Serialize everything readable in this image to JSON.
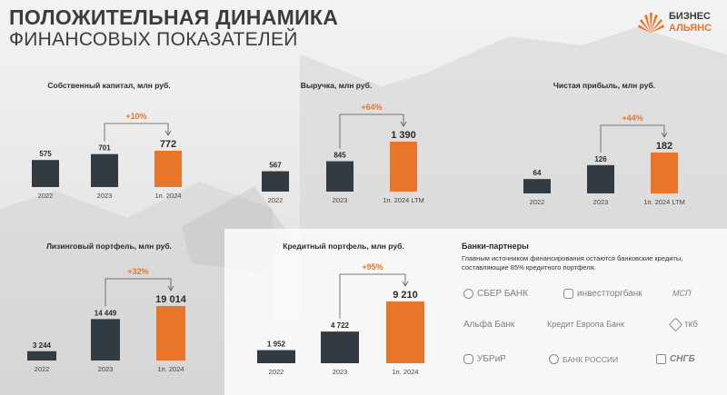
{
  "header": {
    "title_line1": "ПОЛОЖИТЕЛЬНАЯ ДИНАМИКА",
    "title_line2": "ФИНАНСОВЫХ ПОКАЗАТЕЛЕЙ"
  },
  "logo": {
    "line1": "БИЗНЕС",
    "line2": "АЛЬЯНС"
  },
  "colors": {
    "dark": "#323a42",
    "accent": "#e8752a"
  },
  "chart_data": [
    {
      "type": "bar",
      "title": "Собственный капитал, млн руб.",
      "categories": [
        "2022",
        "2023",
        "1п. 2024"
      ],
      "values": [
        575,
        701,
        772
      ],
      "labels": [
        "575",
        "701",
        "772"
      ],
      "growth": "+10%"
    },
    {
      "type": "bar",
      "title": "Выручка, млн руб.",
      "categories": [
        "2022",
        "2023",
        "1п. 2024 LTM"
      ],
      "values": [
        567,
        845,
        1390
      ],
      "labels": [
        "567",
        "845",
        "1 390"
      ],
      "growth": "+64%"
    },
    {
      "type": "bar",
      "title": "Чистая прибыль, млн руб.",
      "categories": [
        "2022",
        "2023",
        "1п. 2024 LTM"
      ],
      "values": [
        64,
        126,
        182
      ],
      "labels": [
        "64",
        "126",
        "182"
      ],
      "growth": "+44%"
    },
    {
      "type": "bar",
      "title": "Лизинговый портфель, млн руб.",
      "categories": [
        "2022",
        "2023",
        "1п. 2024"
      ],
      "values": [
        3244,
        14449,
        19014
      ],
      "labels": [
        "3 244",
        "14 449",
        "19 014"
      ],
      "growth": "+32%"
    },
    {
      "type": "bar",
      "title": "Кредитный портфель, млн руб.",
      "categories": [
        "2022",
        "2023",
        "1п. 2024"
      ],
      "values": [
        1952,
        4722,
        9210
      ],
      "labels": [
        "1 952",
        "4 722",
        "9 210"
      ],
      "growth": "+95%"
    }
  ],
  "banks": {
    "title": "Банки-партнеры",
    "description": "Главным источником финансирования остаются банковские кредиты, составляющие 85% кредитного портфеля.",
    "items": [
      {
        "name": "СБЕР БАНК",
        "icon": "sber-logo-icon"
      },
      {
        "name": "инвестторгбанк",
        "icon": "investtorgbank-logo-icon"
      },
      {
        "name": "МСП",
        "icon": "msp-logo-icon"
      },
      {
        "name": "Альфа Банк",
        "icon": "alfa-logo-icon"
      },
      {
        "name": "Кредит Европа Банк",
        "icon": "credit-europe-logo-icon"
      },
      {
        "name": "ткб",
        "icon": "tkb-logo-icon"
      },
      {
        "name": "УБРиР",
        "icon": "ubrir-logo-icon"
      },
      {
        "name": "БАНК РОССИИ",
        "icon": "bank-rossii-logo-icon"
      },
      {
        "name": "СНГБ",
        "icon": "sngb-logo-icon"
      }
    ]
  }
}
